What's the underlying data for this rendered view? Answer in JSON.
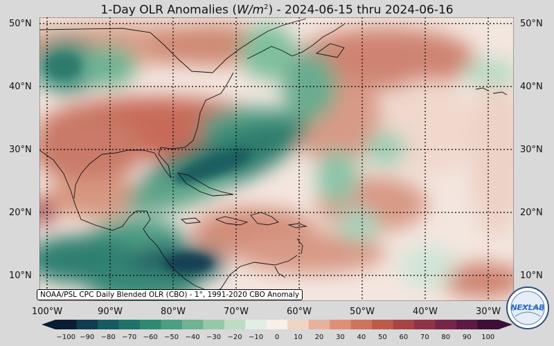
{
  "title": {
    "prefix": "1-Day OLR Anomalies (",
    "unit_base": "W/m",
    "unit_exp": "2",
    "suffix": ") - 2024-06-15 thru 2024-06-16"
  },
  "credit": "NOAA/PSL CPC Daily Blended OLR (CBO) - 1°, 1991-2020 CBO Anomaly",
  "lat_labels": [
    "50°N",
    "40°N",
    "30°N",
    "20°N",
    "10°N"
  ],
  "lon_labels": [
    "100°W",
    "90°W",
    "80°W",
    "70°W",
    "60°W",
    "50°W",
    "40°W",
    "30°W"
  ],
  "colorbar": {
    "ticks": [
      "−100",
      "−90",
      "−80",
      "−70",
      "−60",
      "−50",
      "−40",
      "−30",
      "−20",
      "−10",
      "0",
      "10",
      "20",
      "30",
      "40",
      "50",
      "60",
      "70",
      "80",
      "90",
      "100"
    ],
    "colors": [
      "#0b1d33",
      "#113b4f",
      "#165a63",
      "#1f7369",
      "#2f8a72",
      "#4a9e82",
      "#6eb393",
      "#95c8a9",
      "#bcdcc4",
      "#e1eee3",
      "#f7efe8",
      "#f2d4c4",
      "#e8b19c",
      "#dd9077",
      "#cf735d",
      "#be5a4c",
      "#a84444",
      "#913346",
      "#77264a",
      "#5b1b45",
      "#3d0f36"
    ]
  },
  "logo_text": "NEXLAB",
  "colors": {
    "background": "#d9d9d9"
  }
}
